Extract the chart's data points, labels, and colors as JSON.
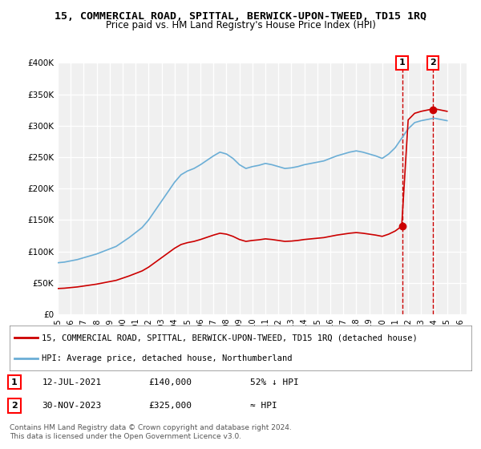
{
  "title": "15, COMMERCIAL ROAD, SPITTAL, BERWICK-UPON-TWEED, TD15 1RQ",
  "subtitle": "Price paid vs. HM Land Registry's House Price Index (HPI)",
  "ylabel": "",
  "background_color": "#ffffff",
  "plot_bg_color": "#f0f0f0",
  "grid_color": "#ffffff",
  "hpi_color": "#6baed6",
  "price_color": "#cc0000",
  "annotation1_date": 2021.53,
  "annotation1_price": 140000,
  "annotation2_date": 2023.92,
  "annotation2_price": 325000,
  "legend_line1": "15, COMMERCIAL ROAD, SPITTAL, BERWICK-UPON-TWEED, TD15 1RQ (detached house)",
  "legend_line2": "HPI: Average price, detached house, Northumberland",
  "note1_label": "1",
  "note1_date": "12-JUL-2021",
  "note1_price": "£140,000",
  "note1_text": "52% ↓ HPI",
  "note2_label": "2",
  "note2_date": "30-NOV-2023",
  "note2_price": "£325,000",
  "note2_text": "≈ HPI",
  "footer": "Contains HM Land Registry data © Crown copyright and database right 2024.\nThis data is licensed under the Open Government Licence v3.0.",
  "ylim": [
    0,
    400000
  ],
  "xlim_start": 1995.0,
  "xlim_end": 2026.5
}
